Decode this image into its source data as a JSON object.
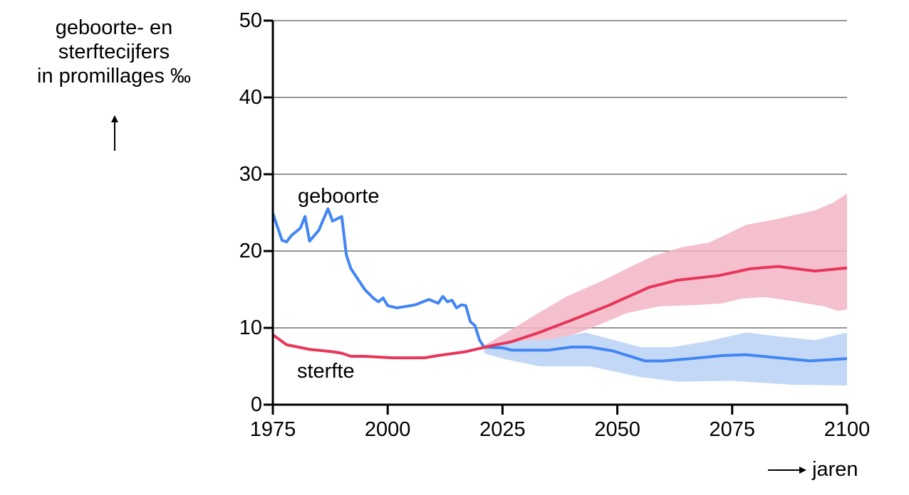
{
  "chart_data": {
    "type": "line",
    "title": "",
    "ylabel": "geboorte- en sterftecijfers in promillages ‰",
    "ylabel_lines": [
      "geboorte- en",
      "sterftecijfers",
      "in promillages ‰"
    ],
    "xlabel": "jaren",
    "xlabel_arrow": "⟶",
    "xlim": [
      1975,
      2100
    ],
    "ylim": [
      0,
      50
    ],
    "xticks": [
      1975,
      2000,
      2025,
      2050,
      2075,
      2100
    ],
    "yticks": [
      0,
      10,
      20,
      30,
      40,
      50
    ],
    "grid": "horizontal",
    "legend": "inline labels",
    "colors": {
      "geboorte": "#4285f4",
      "geboorte_band": "#c3d8f6",
      "sterfte": "#e8365a",
      "sterfte_band": "#f2b5c6"
    },
    "series": [
      {
        "name": "geboorte",
        "label": "geboorte",
        "points": [
          [
            1975,
            24.9
          ],
          [
            1977,
            21.4
          ],
          [
            1978,
            21.2
          ],
          [
            1979,
            22.0
          ],
          [
            1981,
            23.0
          ],
          [
            1982,
            24.5
          ],
          [
            1983,
            21.3
          ],
          [
            1985,
            22.7
          ],
          [
            1987,
            25.5
          ],
          [
            1988,
            23.9
          ],
          [
            1990,
            24.5
          ],
          [
            1991,
            19.5
          ],
          [
            1992,
            17.7
          ],
          [
            1995,
            15.0
          ],
          [
            1997,
            13.8
          ],
          [
            1998,
            13.4
          ],
          [
            1999,
            13.9
          ],
          [
            2000,
            12.9
          ],
          [
            2002,
            12.6
          ],
          [
            2006,
            13.0
          ],
          [
            2009,
            13.7
          ],
          [
            2011,
            13.2
          ],
          [
            2012,
            14.1
          ],
          [
            2013,
            13.4
          ],
          [
            2014,
            13.6
          ],
          [
            2015,
            12.6
          ],
          [
            2016,
            13.0
          ],
          [
            2017,
            12.9
          ],
          [
            2018,
            10.8
          ],
          [
            2019,
            10.3
          ],
          [
            2020,
            8.4
          ],
          [
            2021,
            7.5
          ],
          [
            2025,
            7.4
          ],
          [
            2027,
            7.1
          ],
          [
            2035,
            7.1
          ],
          [
            2040,
            7.5
          ],
          [
            2044,
            7.5
          ],
          [
            2049,
            7.0
          ],
          [
            2056,
            5.7
          ],
          [
            2060,
            5.7
          ],
          [
            2066,
            6.0
          ],
          [
            2073,
            6.4
          ],
          [
            2078,
            6.5
          ],
          [
            2085,
            6.1
          ],
          [
            2092,
            5.7
          ],
          [
            2100,
            6.0
          ]
        ],
        "band": {
          "upper": [
            [
              2021,
              7.6
            ],
            [
              2025,
              8.2
            ],
            [
              2035,
              8.5
            ],
            [
              2043,
              9.4
            ],
            [
              2050,
              8.3
            ],
            [
              2055,
              7.5
            ],
            [
              2062,
              7.5
            ],
            [
              2070,
              8.3
            ],
            [
              2078,
              9.4
            ],
            [
              2085,
              8.9
            ],
            [
              2093,
              8.4
            ],
            [
              2100,
              9.4
            ]
          ],
          "lower": [
            [
              2021,
              6.7
            ],
            [
              2025,
              6.0
            ],
            [
              2033,
              5.0
            ],
            [
              2044,
              5.0
            ],
            [
              2055,
              3.6
            ],
            [
              2063,
              3.0
            ],
            [
              2075,
              3.1
            ],
            [
              2088,
              2.6
            ],
            [
              2100,
              2.5
            ]
          ]
        }
      },
      {
        "name": "sterfte",
        "label": "sterfte",
        "points": [
          [
            1975,
            9.1
          ],
          [
            1978,
            7.8
          ],
          [
            1983,
            7.2
          ],
          [
            1988,
            6.9
          ],
          [
            1990,
            6.7
          ],
          [
            1992,
            6.3
          ],
          [
            1995,
            6.3
          ],
          [
            2001,
            6.1
          ],
          [
            2008,
            6.1
          ],
          [
            2011,
            6.4
          ],
          [
            2017,
            6.9
          ],
          [
            2022,
            7.6
          ],
          [
            2027,
            8.2
          ],
          [
            2033,
            9.4
          ],
          [
            2040,
            11.0
          ],
          [
            2048,
            12.9
          ],
          [
            2057,
            15.3
          ],
          [
            2063,
            16.2
          ],
          [
            2072,
            16.8
          ],
          [
            2079,
            17.7
          ],
          [
            2085,
            18.0
          ],
          [
            2093,
            17.4
          ],
          [
            2100,
            17.8
          ]
        ],
        "band": {
          "upper": [
            [
              2021,
              7.7
            ],
            [
              2027,
              9.8
            ],
            [
              2033,
              12.0
            ],
            [
              2039,
              14.1
            ],
            [
              2047,
              16.2
            ],
            [
              2053,
              18.0
            ],
            [
              2058,
              19.4
            ],
            [
              2064,
              20.5
            ],
            [
              2070,
              21.1
            ],
            [
              2078,
              23.4
            ],
            [
              2085,
              24.2
            ],
            [
              2093,
              25.3
            ],
            [
              2097,
              26.3
            ],
            [
              2100,
              27.5
            ]
          ],
          "lower": [
            [
              2021,
              7.0
            ],
            [
              2030,
              7.2
            ],
            [
              2037,
              8.4
            ],
            [
              2044,
              9.9
            ],
            [
              2052,
              11.9
            ],
            [
              2059,
              12.8
            ],
            [
              2068,
              13.0
            ],
            [
              2073,
              13.2
            ],
            [
              2077,
              13.8
            ],
            [
              2082,
              14.0
            ],
            [
              2088,
              13.5
            ],
            [
              2095,
              12.8
            ],
            [
              2098,
              12.2
            ],
            [
              2100,
              12.4
            ]
          ]
        }
      }
    ]
  },
  "labels": {
    "geboorte": "geboorte",
    "sterfte": "sterfte",
    "xlabel": "jaren",
    "ylabel_line1": "geboorte- en",
    "ylabel_line2": "sterftecijfers",
    "ylabel_line3": "in promillages ‰"
  }
}
